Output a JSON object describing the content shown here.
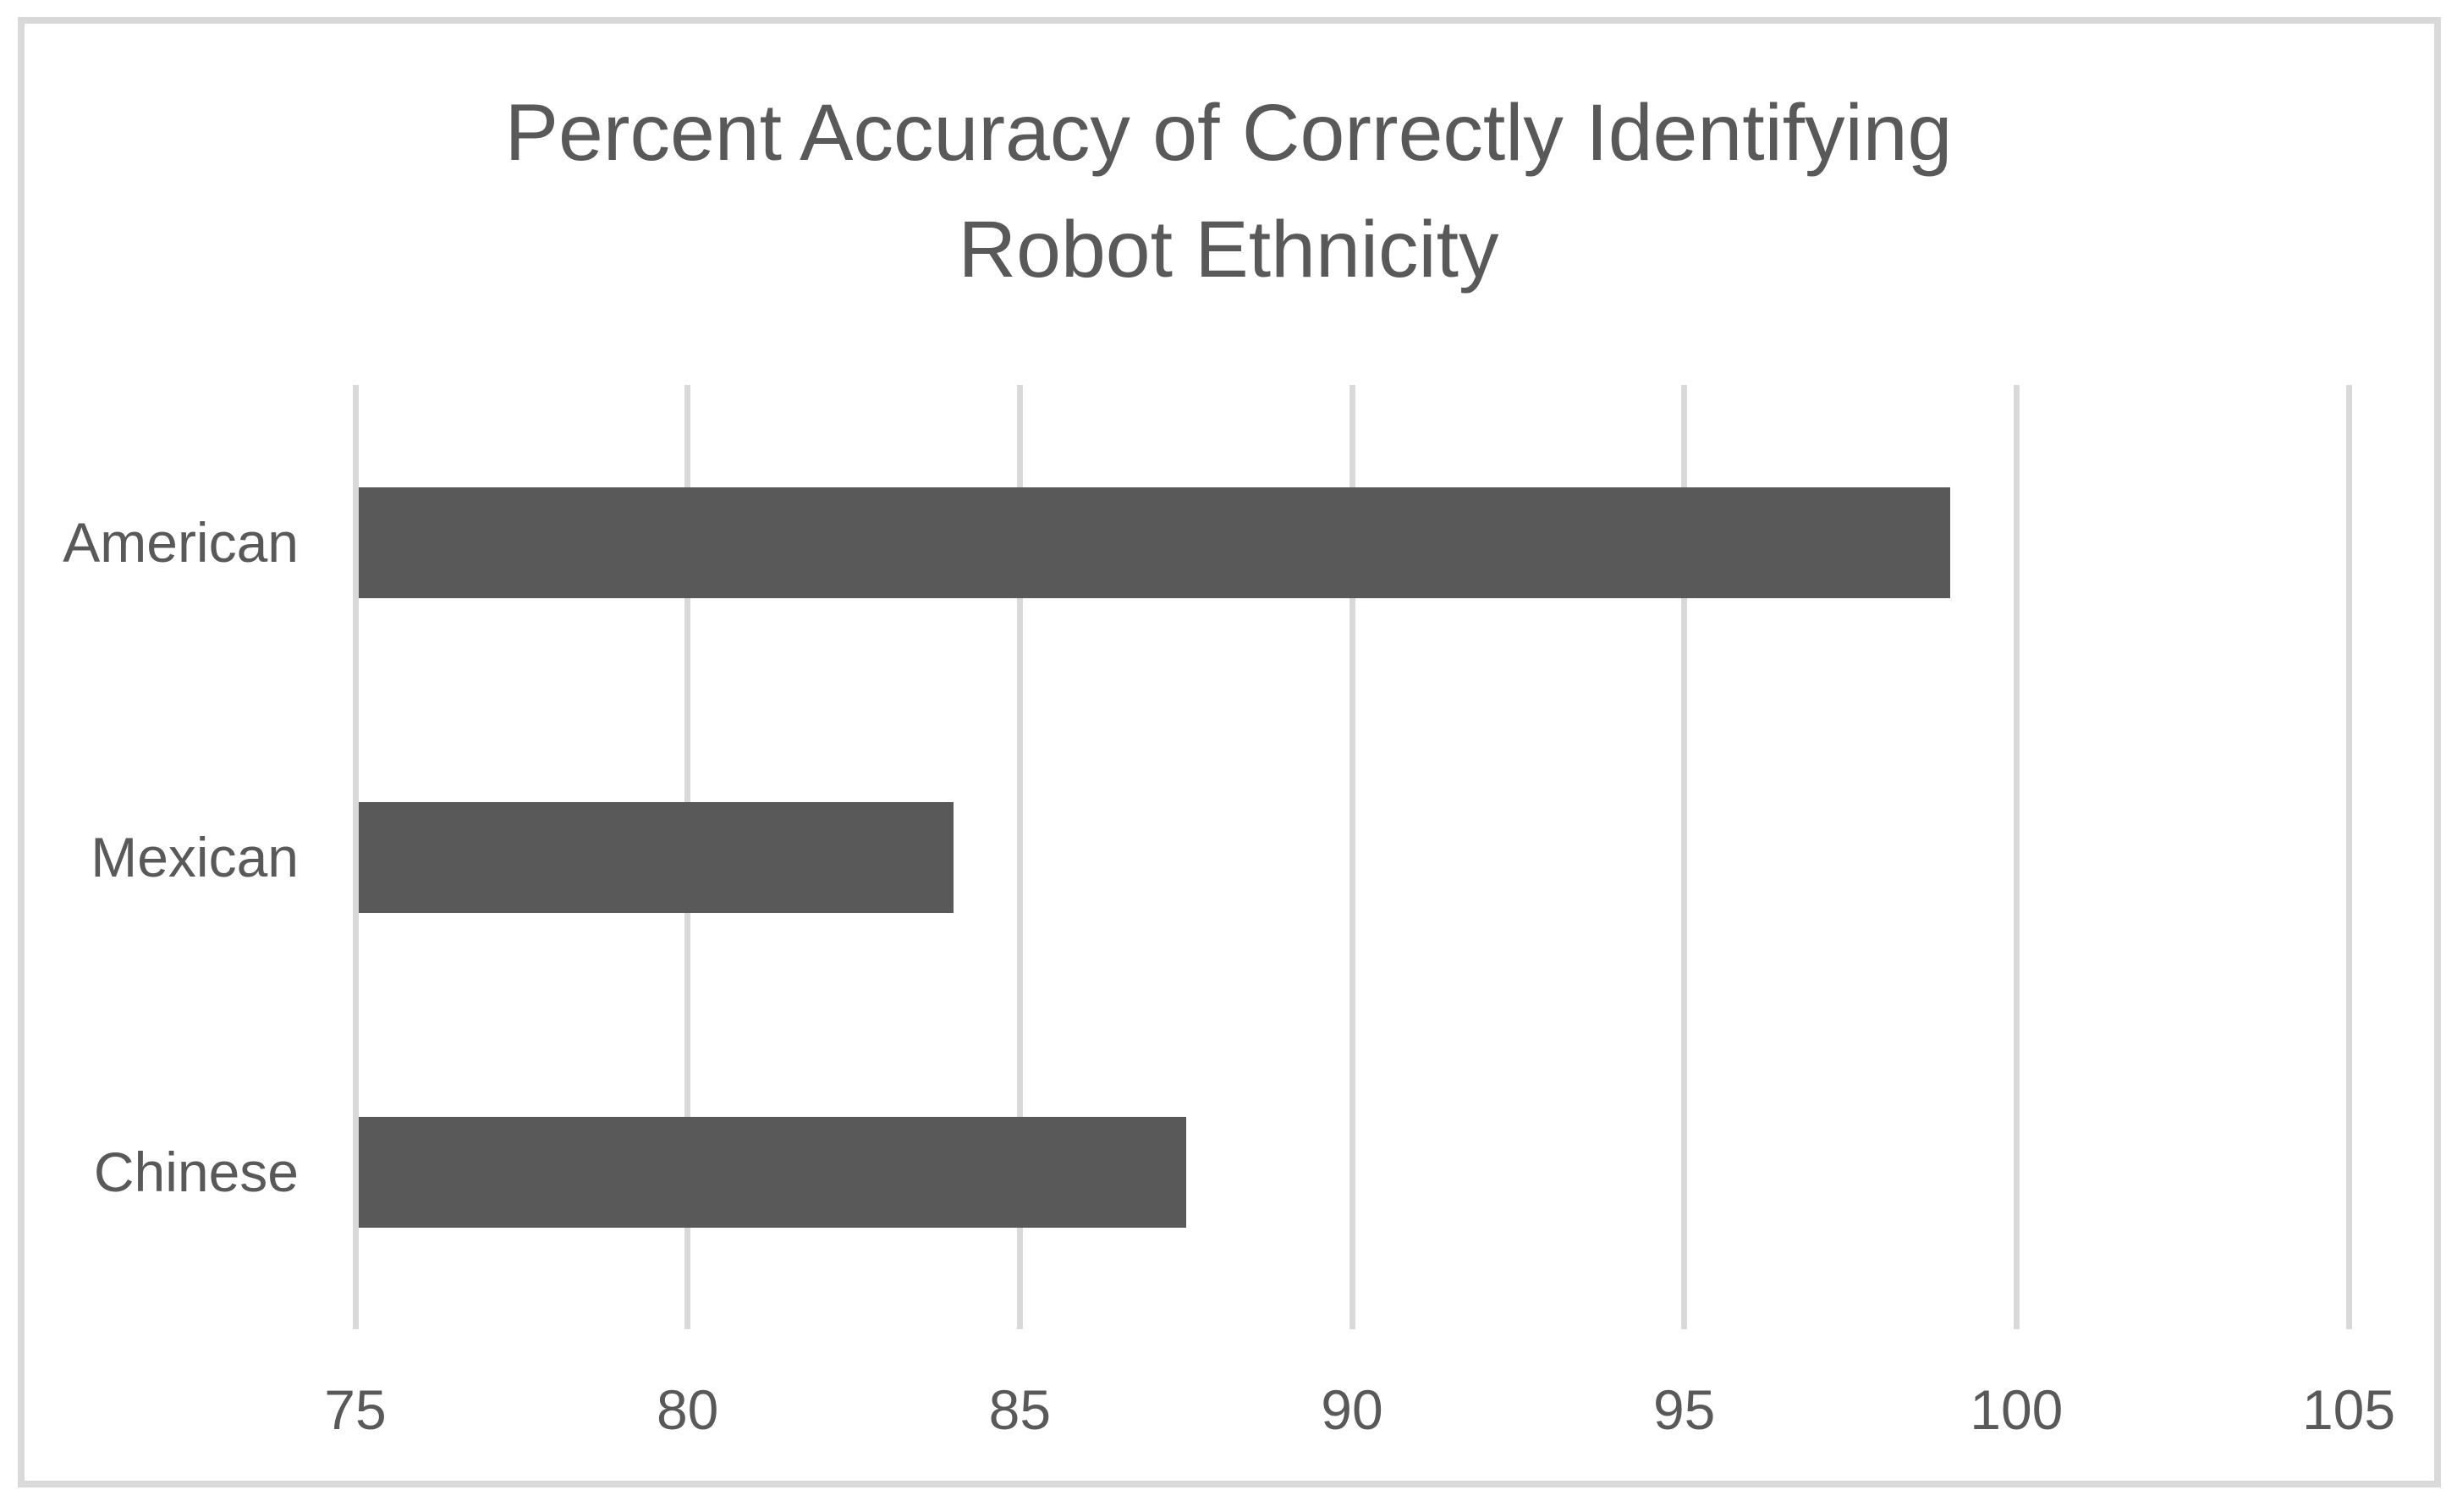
{
  "chart_data": {
    "type": "bar",
    "orientation": "horizontal",
    "title": "Percent Accuracy of Correctly Identifying Robot Ethnicity",
    "title_line1": "Percent Accuracy of Correctly Identifying",
    "title_line2": "Robot Ethnicity",
    "categories": [
      "American",
      "Mexican",
      "Chinese"
    ],
    "values": [
      99,
      84,
      87.5
    ],
    "xlabel": "",
    "ylabel": "",
    "xlim": [
      75,
      105
    ],
    "xticks": [
      75,
      80,
      85,
      90,
      95,
      100,
      105
    ],
    "grid": "vertical-gridlines",
    "legend": "none",
    "colors": {
      "bar_fill": "#595959",
      "gridline": "#d9d9d9",
      "chart_border": "#d9d9d9",
      "text": "#595959",
      "background": "#ffffff"
    }
  }
}
